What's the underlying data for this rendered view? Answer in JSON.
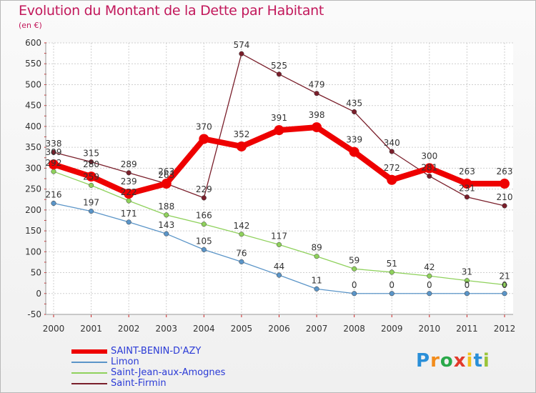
{
  "header": {
    "title": "Evolution du Montant de la Dette par Habitant",
    "unit": "(en €)"
  },
  "chart_data": {
    "type": "line",
    "title": "Evolution du Montant de la Dette par Habitant",
    "ylabel": "(en €)",
    "xlabel": "",
    "x": [
      "2000",
      "2001",
      "2002",
      "2003",
      "2004",
      "2005",
      "2006",
      "2007",
      "2008",
      "2009",
      "2010",
      "2011",
      "2012"
    ],
    "ylim": [
      -50,
      600
    ],
    "yticks": [
      -50,
      0,
      50,
      100,
      150,
      200,
      250,
      300,
      350,
      400,
      450,
      500,
      550,
      600
    ],
    "grid": true,
    "legend": "bottom-left",
    "series": [
      {
        "name": "Saint-Firmin",
        "color": "#7a1f2b",
        "values": [
          338,
          315,
          289,
          263,
          229,
          574,
          525,
          479,
          435,
          340,
          281,
          231,
          210
        ]
      },
      {
        "name": "Limon",
        "color": "#5b95c8",
        "values": [
          216,
          197,
          171,
          143,
          105,
          76,
          44,
          11,
          0,
          0,
          0,
          0,
          0
        ]
      },
      {
        "name": "Saint-Jean-aux-Amognes",
        "color": "#8fd15c",
        "values": [
          292,
          259,
          222,
          188,
          166,
          142,
          117,
          89,
          59,
          51,
          42,
          31,
          21
        ]
      },
      {
        "name": "SAINT-BENIN-D'AZY",
        "color": "#ee0000",
        "values": [
          309,
          280,
          239,
          263,
          370,
          352,
          391,
          398,
          339,
          272,
          300,
          263,
          263
        ]
      }
    ]
  },
  "legend": {
    "items": [
      {
        "label": "SAINT-BENIN-D'AZY",
        "color": "#ee0000"
      },
      {
        "label": "Limon",
        "color": "#5b95c8"
      },
      {
        "label": "Saint-Jean-aux-Amognes",
        "color": "#8fd15c"
      },
      {
        "label": "Saint-Firmin",
        "color": "#7a1f2b"
      }
    ]
  },
  "logo": {
    "letters": [
      "P",
      "r",
      "o",
      "x",
      "i",
      "t",
      "i"
    ],
    "colors": [
      "#2a8fd8",
      "#f28c1c",
      "#2aa94a",
      "#e23a2a",
      "#f2c21c",
      "#2a8fd8",
      "#9ac43a"
    ]
  }
}
